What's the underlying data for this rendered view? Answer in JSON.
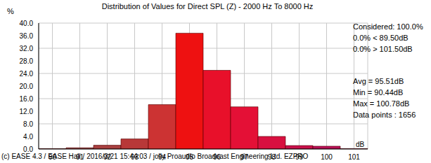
{
  "chart_data": {
    "type": "bar",
    "title": "Distribution of Values for Direct SPL (Z)  - 2000 Hz To 8000 Hz",
    "y_label": "%",
    "x_label": "dB",
    "categories": [
      "90",
      "91",
      "92",
      "93",
      "94",
      "95",
      "96",
      "97",
      "98",
      "99",
      "100",
      "101"
    ],
    "values": [
      0.1,
      0.4,
      1.2,
      3.2,
      14.1,
      36.8,
      25.0,
      13.4,
      4.0,
      1.1,
      0.9,
      0.1
    ],
    "colors": [
      "#904848",
      "#a04444",
      "#a84040",
      "#b83838",
      "#cc3333",
      "#ee1111",
      "#e8102a",
      "#e41036",
      "#d81040",
      "#c8104c",
      "#b81058",
      "#a81060"
    ],
    "ylim": [
      0,
      40
    ],
    "yticks": [
      {
        "value": 0,
        "label": "0.0"
      },
      {
        "value": 4,
        "label": "4.0"
      },
      {
        "value": 8,
        "label": "8.0"
      },
      {
        "value": 12,
        "label": "12.0"
      },
      {
        "value": 16,
        "label": "16.0"
      },
      {
        "value": 20,
        "label": "20.0"
      },
      {
        "value": 24,
        "label": "24.0"
      },
      {
        "value": 28,
        "label": "28.0"
      },
      {
        "value": 32,
        "label": "32.0"
      },
      {
        "value": 36,
        "label": "36.0"
      },
      {
        "value": 40,
        "label": "40.0"
      }
    ],
    "grid": true,
    "annotations": [
      "Considered: 100.0%",
      "0.0% < 89.50dB",
      "0.0% > 101.50dB",
      "Avg = 95.51dB",
      "Min = 90.44dB",
      "Max = 100.78dB",
      "Data points : 1656"
    ],
    "footer": "(c) EASE 4.3  / EASE Hall  / 2016/3/21 15:44:03 / jolly Proaudio Broadcast Engineering Ltd. EZPRO"
  }
}
